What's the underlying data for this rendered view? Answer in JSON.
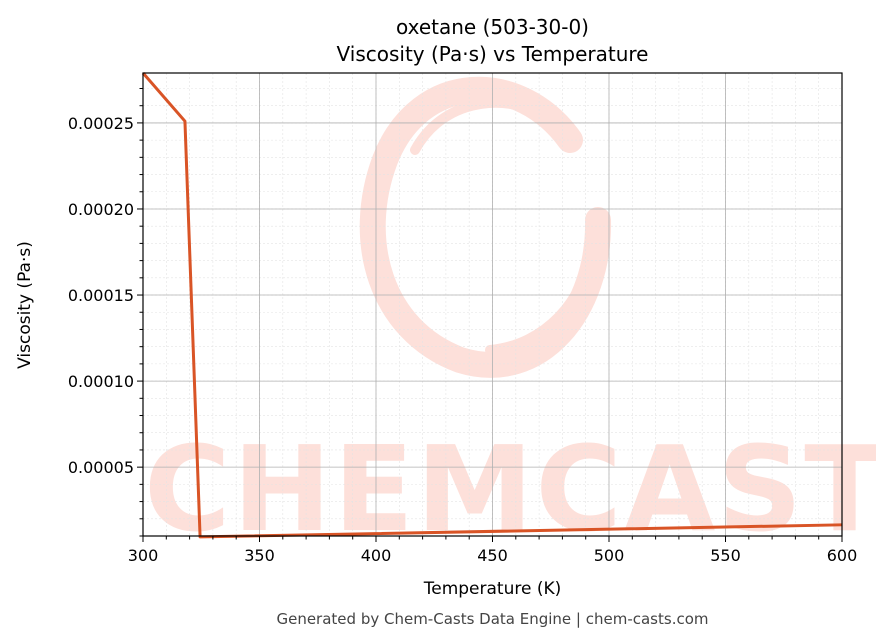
{
  "chart_data": {
    "type": "line",
    "title": "oxetane (503-30-0)",
    "subtitle": "Viscosity (Pa·s) vs Temperature",
    "xlabel": "Temperature (K)",
    "ylabel": "Viscosity (Pa·s)",
    "xlim": [
      300,
      600
    ],
    "ylim": [
      1e-05,
      0.000279
    ],
    "x_ticks": [
      300,
      350,
      400,
      450,
      500,
      550,
      600
    ],
    "x_tick_labels": [
      "300",
      "350",
      "400",
      "450",
      "500",
      "550",
      "600"
    ],
    "y_ticks": [
      5e-05,
      0.0001,
      0.00015,
      0.0002,
      0.00025
    ],
    "y_tick_labels": [
      "0.00005",
      "0.00010",
      "0.00015",
      "0.00020",
      "0.00025"
    ],
    "grid": true,
    "series": [
      {
        "color": "#d95426",
        "x": [
          300,
          318,
          324.5,
          600
        ],
        "y": [
          0.000279,
          0.000251,
          9.5e-06,
          1.65e-05
        ]
      }
    ]
  },
  "watermark": {
    "text": "CHEMCASTS",
    "color": "#fde0da"
  },
  "footer": "Generated by Chem-Casts Data Engine | chem-casts.com"
}
